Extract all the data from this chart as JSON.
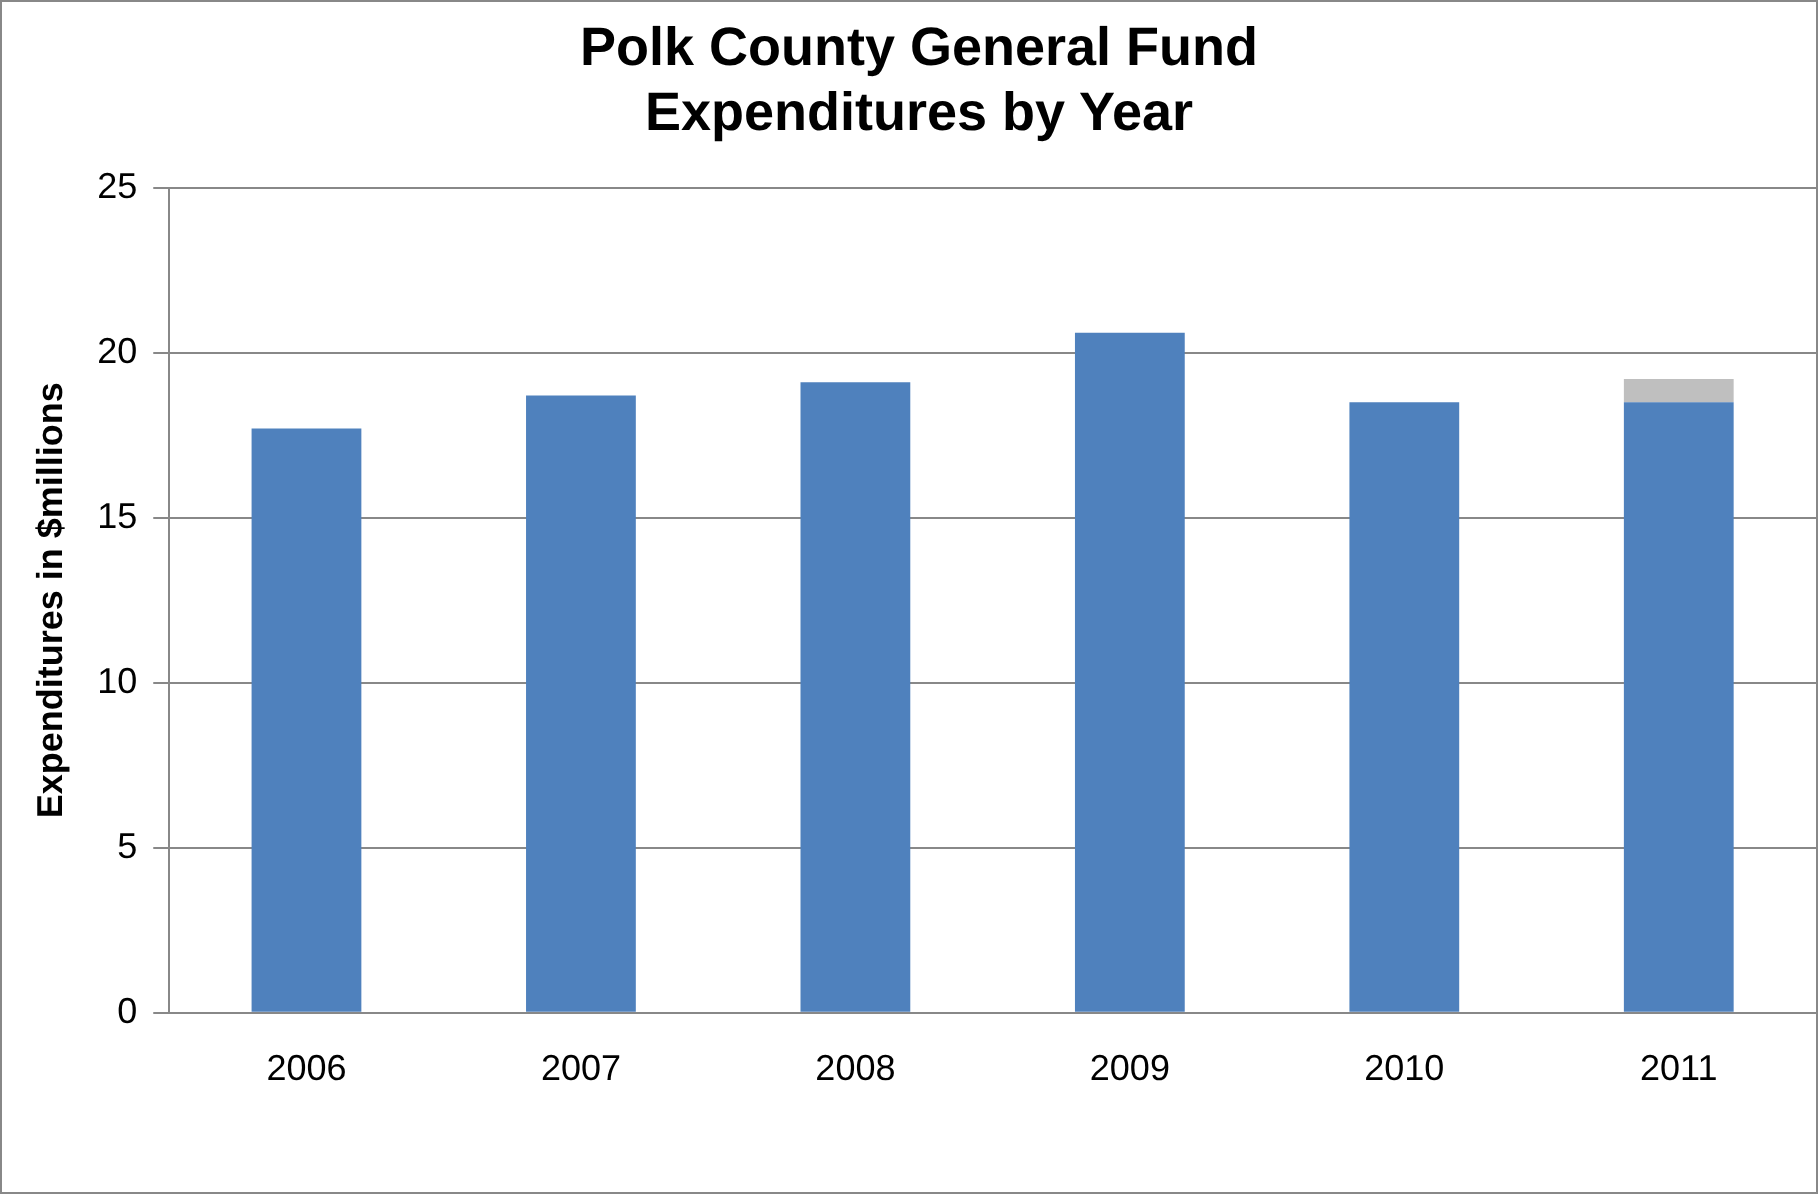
{
  "chart_data": {
    "type": "bar",
    "title": [
      "Polk County General Fund",
      "Expenditures by Year"
    ],
    "ylabel": "Expenditures in $millions",
    "categories": [
      "2006",
      "2007",
      "2008",
      "2009",
      "2010",
      "2011"
    ],
    "stacked": true,
    "series": [
      {
        "color": "#4f81bd",
        "values": [
          17.7,
          18.7,
          19.1,
          20.6,
          18.5,
          18.5
        ]
      },
      {
        "color": "#bfbfbf",
        "values": [
          null,
          null,
          null,
          null,
          null,
          0.7
        ]
      }
    ],
    "ylim": [
      0,
      25
    ],
    "yticks": [
      0,
      5,
      10,
      15,
      20,
      25
    ],
    "grid": "y",
    "legend": false
  }
}
